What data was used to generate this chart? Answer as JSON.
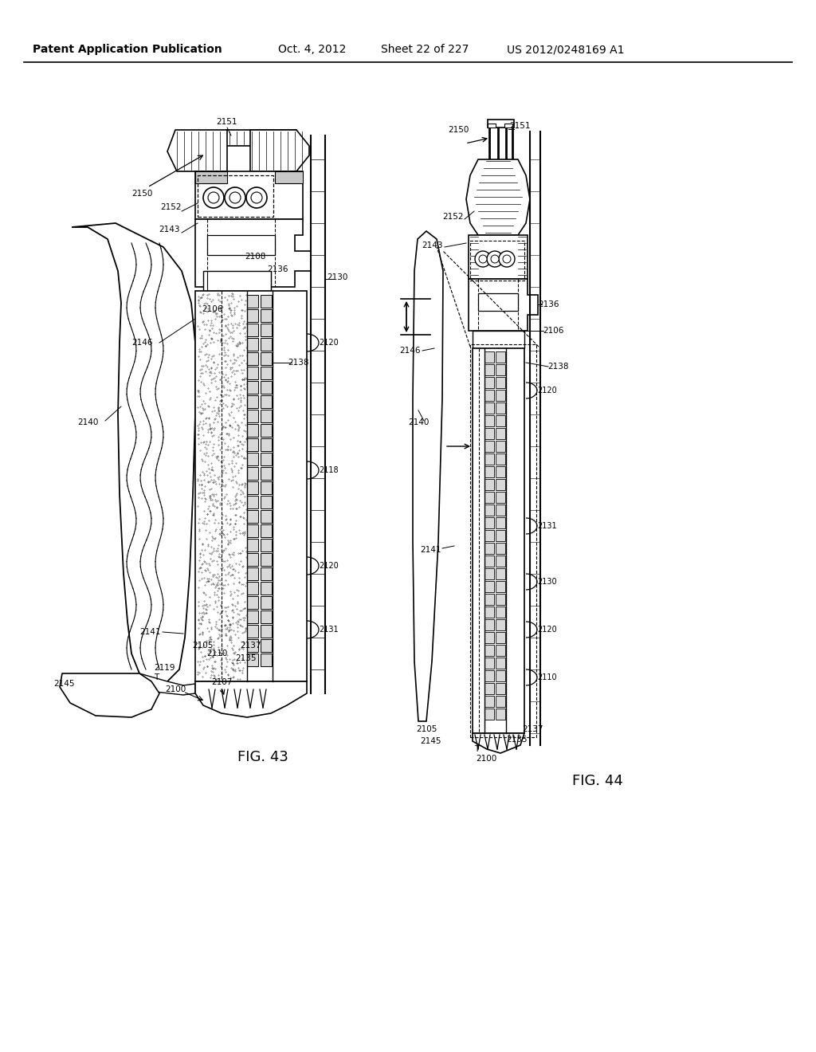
{
  "bg_color": "#ffffff",
  "line_color": "#000000",
  "header_text": "Patent Application Publication",
  "header_date": "Oct. 4, 2012",
  "header_sheet": "Sheet 22 of 227",
  "header_patent": "US 2012/0248169 A1",
  "fig43_label": "FIG. 43",
  "fig44_label": "FIG. 44",
  "font_size_header": 10,
  "font_size_label": 7.5,
  "font_size_fig": 13
}
